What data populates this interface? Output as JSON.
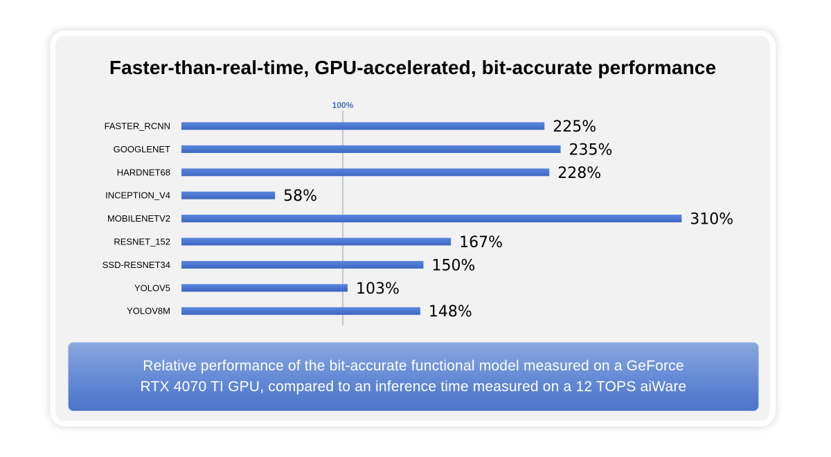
{
  "title": "Faster-than-real-time, GPU-accelerated, bit-accurate performance",
  "caption": {
    "line1": "Relative performance of the bit-accurate functional model measured on a GeForce",
    "line2": "RTX 4070 TI GPU, compared to an inference time measured on a 12 TOPS aiWare"
  },
  "colors": {
    "bar": "#4a74cf",
    "bar_dark": "#3b62b8",
    "reference_line": "#8a9ab5",
    "reference_label": "#4a6fbf"
  },
  "chart_data": {
    "type": "bar",
    "orientation": "horizontal",
    "title": "Faster-than-real-time, GPU-accelerated, bit-accurate performance",
    "categories": [
      "FASTER_RCNN",
      "GOOGLENET",
      "HARDNET68",
      "INCEPTION_V4",
      "MOBILENETV2",
      "RESNET_152",
      "SSD-RESNET34",
      "YOLOV5",
      "YOLOV8M"
    ],
    "values": [
      225,
      235,
      228,
      58,
      310,
      167,
      150,
      103,
      148
    ],
    "value_labels": [
      "225%",
      "235%",
      "228%",
      "58%",
      "310%",
      "167%",
      "150%",
      "103%",
      "148%"
    ],
    "unit": "%",
    "xlim": [
      0,
      310
    ],
    "reference_line": {
      "value": 100,
      "label": "100%"
    },
    "xlabel": "",
    "ylabel": "",
    "grid": false,
    "legend": "none"
  }
}
